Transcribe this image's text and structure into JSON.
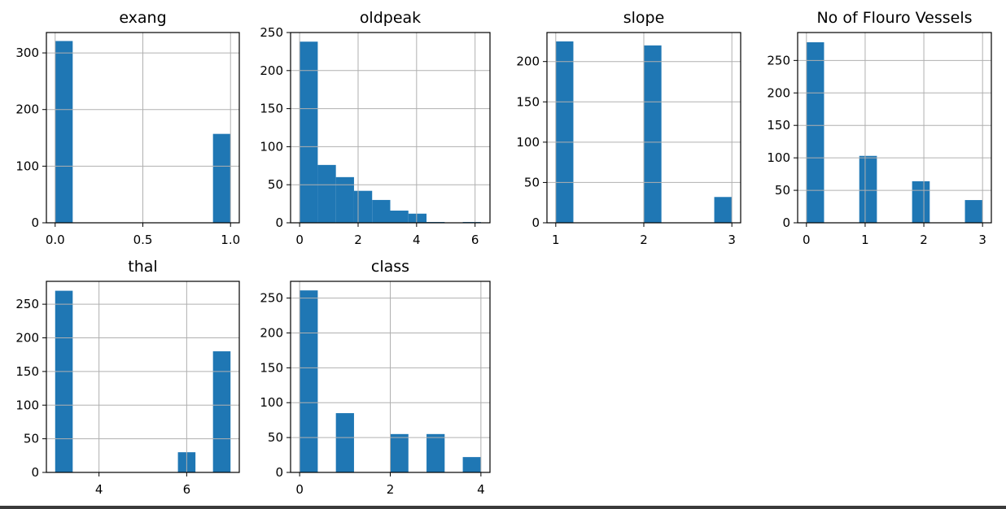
{
  "chart_data": [
    {
      "type": "bar",
      "title": "exang",
      "xlim": [
        -0.05,
        1.05
      ],
      "ylim": [
        0,
        336
      ],
      "xticks": [
        0.0,
        0.5,
        1.0
      ],
      "xtick_labels": [
        "0.0",
        "0.5",
        "1.0"
      ],
      "yticks": [
        0,
        100,
        200,
        300
      ],
      "bins": [
        {
          "x0": 0.0,
          "x1": 0.1,
          "count": 321
        },
        {
          "x0": 0.9,
          "x1": 1.0,
          "count": 157
        }
      ]
    },
    {
      "type": "bar",
      "title": "oldpeak",
      "xlim": [
        -0.31,
        6.51
      ],
      "ylim": [
        0,
        250
      ],
      "xticks": [
        0,
        2,
        4,
        6
      ],
      "xtick_labels": [
        "0",
        "2",
        "4",
        "6"
      ],
      "yticks": [
        0,
        50,
        100,
        150,
        200,
        250
      ],
      "bins": [
        {
          "x0": 0.0,
          "x1": 0.62,
          "count": 238
        },
        {
          "x0": 0.62,
          "x1": 1.24,
          "count": 76
        },
        {
          "x0": 1.24,
          "x1": 1.86,
          "count": 60
        },
        {
          "x0": 1.86,
          "x1": 2.48,
          "count": 42
        },
        {
          "x0": 2.48,
          "x1": 3.1,
          "count": 30
        },
        {
          "x0": 3.1,
          "x1": 3.72,
          "count": 16
        },
        {
          "x0": 3.72,
          "x1": 4.34,
          "count": 12
        },
        {
          "x0": 4.34,
          "x1": 4.96,
          "count": 1
        },
        {
          "x0": 4.96,
          "x1": 5.58,
          "count": 0
        },
        {
          "x0": 5.58,
          "x1": 6.2,
          "count": 1
        }
      ]
    },
    {
      "type": "bar",
      "title": "slope",
      "xlim": [
        0.9,
        3.1
      ],
      "ylim": [
        0,
        236
      ],
      "xticks": [
        1,
        2,
        3
      ],
      "xtick_labels": [
        "1",
        "2",
        "3"
      ],
      "yticks": [
        0,
        50,
        100,
        150,
        200
      ],
      "bins": [
        {
          "x0": 1.0,
          "x1": 1.2,
          "count": 225
        },
        {
          "x0": 2.0,
          "x1": 2.2,
          "count": 220
        },
        {
          "x0": 2.8,
          "x1": 3.0,
          "count": 32
        }
      ]
    },
    {
      "type": "bar",
      "title": "No of Flouro Vessels",
      "xlim": [
        -0.15,
        3.15
      ],
      "ylim": [
        0,
        293
      ],
      "xticks": [
        0,
        1,
        2,
        3
      ],
      "xtick_labels": [
        "0",
        "1",
        "2",
        "3"
      ],
      "yticks": [
        0,
        50,
        100,
        150,
        200,
        250
      ],
      "bins": [
        {
          "x0": 0.0,
          "x1": 0.3,
          "count": 278
        },
        {
          "x0": 0.9,
          "x1": 1.2,
          "count": 103
        },
        {
          "x0": 1.8,
          "x1": 2.1,
          "count": 64
        },
        {
          "x0": 2.7,
          "x1": 3.0,
          "count": 35
        }
      ]
    },
    {
      "type": "bar",
      "title": "thal",
      "xlim": [
        2.8,
        7.2
      ],
      "ylim": [
        0,
        284
      ],
      "xticks": [
        4,
        6
      ],
      "xtick_labels": [
        "4",
        "6"
      ],
      "yticks": [
        0,
        50,
        100,
        150,
        200,
        250
      ],
      "bins": [
        {
          "x0": 3.0,
          "x1": 3.4,
          "count": 270
        },
        {
          "x0": 5.8,
          "x1": 6.2,
          "count": 30
        },
        {
          "x0": 6.6,
          "x1": 7.0,
          "count": 180
        }
      ]
    },
    {
      "type": "bar",
      "title": "class",
      "xlim": [
        -0.2,
        4.2
      ],
      "ylim": [
        0,
        274
      ],
      "xticks": [
        0,
        2,
        4
      ],
      "xtick_labels": [
        "0",
        "2",
        "4"
      ],
      "yticks": [
        0,
        50,
        100,
        150,
        200,
        250
      ],
      "bins": [
        {
          "x0": 0.0,
          "x1": 0.4,
          "count": 261
        },
        {
          "x0": 0.8,
          "x1": 1.2,
          "count": 85
        },
        {
          "x0": 2.0,
          "x1": 2.4,
          "count": 55
        },
        {
          "x0": 2.8,
          "x1": 3.2,
          "count": 55
        },
        {
          "x0": 3.6,
          "x1": 4.0,
          "count": 22
        }
      ]
    }
  ],
  "colors": {
    "bar": "#1f77b4",
    "grid": "#b0b0b0"
  }
}
